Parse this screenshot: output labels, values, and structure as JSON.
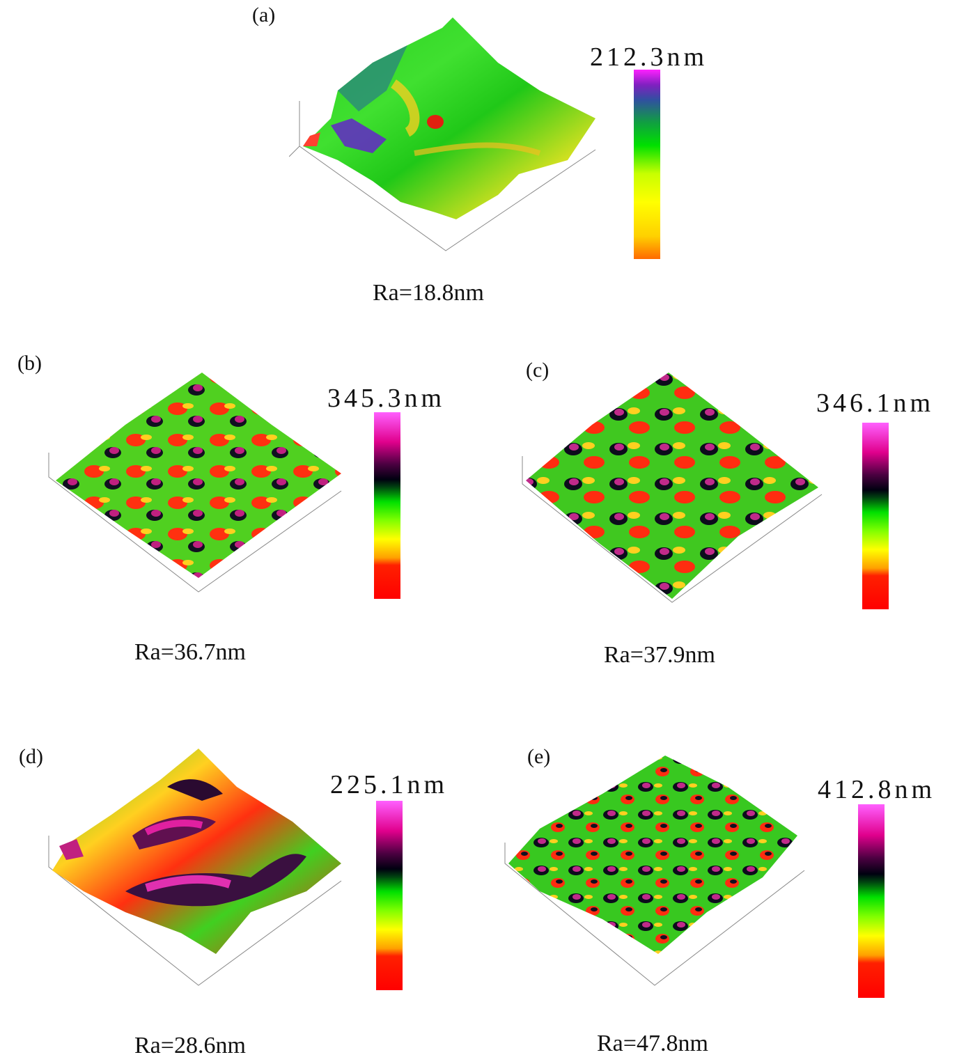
{
  "panels": [
    {
      "id": "a",
      "label": "(a)",
      "scale_max": "212.3nm",
      "ra": "Ra=18.8nm"
    },
    {
      "id": "b",
      "label": "(b)",
      "scale_max": "345.3nm",
      "ra": "Ra=36.7nm"
    },
    {
      "id": "c",
      "label": "(c)",
      "scale_max": "346.1nm",
      "ra": "Ra=37.9nm"
    },
    {
      "id": "d",
      "label": "(d)",
      "scale_max": "225.1nm",
      "ra": "Ra=28.6nm"
    },
    {
      "id": "e",
      "label": "(e)",
      "scale_max": "412.8nm",
      "ra": "Ra=47.8nm"
    }
  ],
  "colors": {
    "magenta": "#ff20ff",
    "dark": "#0a0a20",
    "green": "#00e000",
    "yellow": "#ffff00",
    "red": "#ff0000"
  }
}
